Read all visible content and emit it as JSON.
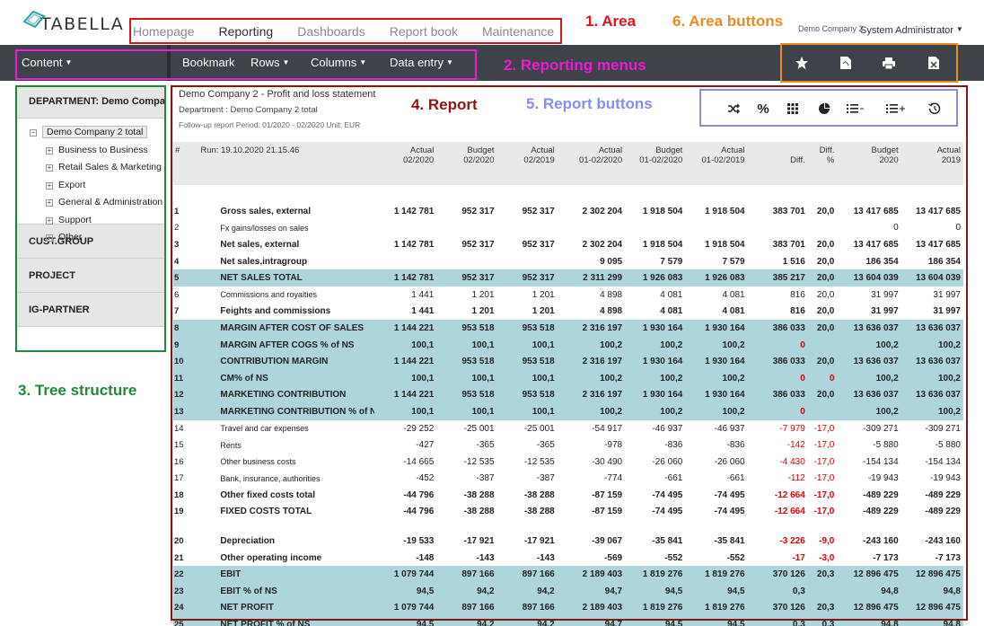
{
  "header": {
    "logo": "TABELLA",
    "area_nav": [
      "Homepage",
      "Reporting",
      "Dashboards",
      "Report book",
      "Maintenance"
    ],
    "active_area": "Reporting",
    "company": "Demo Company 2",
    "user": "System Administrator"
  },
  "menu": {
    "content": "Content",
    "bookmark": "Bookmark",
    "rows": "Rows",
    "columns": "Columns",
    "data_entry": "Data entry",
    "area_button_icons": [
      "star-icon",
      "pdf-icon",
      "print-icon",
      "excel-icon"
    ]
  },
  "sidebar": {
    "department": "DEPARTMENT: Demo Company",
    "tree_root": "Demo Company 2 total",
    "tree_children": [
      "Business to Business",
      "Retail Sales & Marketing",
      "Export",
      "General & Administration",
      "Support",
      "Other"
    ],
    "sections": [
      "CUST.GROUP",
      "PROJECT",
      "IG-PARTNER"
    ]
  },
  "report": {
    "title": "Demo Company 2 - Profit and loss statement",
    "department": "Department : Demo Company 2 total",
    "followup": "Follow-up report Period: 01/2020 - 02/2020 Unit: EUR",
    "button_icons": [
      "shuffle-icon",
      "percent-icon",
      "grid-icon",
      "pie-chart-icon",
      "list-collapse-icon",
      "list-expand-icon",
      "history-icon"
    ],
    "table": {
      "hash": "#",
      "run": "Run: 19.10.2020 21.15.46",
      "columns": [
        [
          "Actual",
          "02/2020"
        ],
        [
          "Budget",
          "02/2020"
        ],
        [
          "Actual",
          "02/2019"
        ],
        [
          "Actual",
          "01-02/2020"
        ],
        [
          "Budget",
          "01-02/2020"
        ],
        [
          "Actual",
          "01-02/2019"
        ],
        [
          "",
          "Diff."
        ],
        [
          "Diff.",
          "%"
        ],
        [
          "Budget",
          "2020"
        ],
        [
          "Actual",
          "2019"
        ]
      ],
      "rows": [
        {
          "n": "1",
          "label": "Gross sales, external",
          "style": "bold",
          "v": [
            "1 142 781",
            "952 317",
            "952 317",
            "2 302 204",
            "1 918 504",
            "1 918 504",
            "383 701",
            "20,0",
            "13 417 685",
            "13 417 685"
          ]
        },
        {
          "n": "2",
          "label": "Fx gains/losses on sales",
          "style": "small",
          "v": [
            "",
            "",
            "",
            "",
            "",
            "",
            "",
            "",
            "0",
            "0"
          ]
        },
        {
          "n": "3",
          "label": "Net sales, external",
          "style": "bold",
          "v": [
            "1 142 781",
            "952 317",
            "952 317",
            "2 302 204",
            "1 918 504",
            "1 918 504",
            "383 701",
            "20,0",
            "13 417 685",
            "13 417 685"
          ]
        },
        {
          "n": "4",
          "label": "Net sales,intragroup",
          "style": "bold",
          "v": [
            "",
            "",
            "",
            "9 095",
            "7 579",
            "7 579",
            "1 516",
            "20,0",
            "186 354",
            "186 354"
          ]
        },
        {
          "n": "5",
          "label": "NET SALES TOTAL",
          "style": "hl",
          "v": [
            "1 142 781",
            "952 317",
            "952 317",
            "2 311 299",
            "1 926 083",
            "1 926 083",
            "385 217",
            "20,0",
            "13 604 039",
            "13 604 039"
          ]
        },
        {
          "n": "6",
          "label": "Commissions and royalties",
          "style": "small",
          "v": [
            "1 441",
            "1 201",
            "1 201",
            "4 898",
            "4 081",
            "4 081",
            "816",
            "20,0",
            "31 997",
            "31 997"
          ]
        },
        {
          "n": "7",
          "label": "Feights and commissions",
          "style": "bold",
          "v": [
            "1 441",
            "1 201",
            "1 201",
            "4 898",
            "4 081",
            "4 081",
            "816",
            "20,0",
            "31 997",
            "31 997"
          ]
        },
        {
          "n": "8",
          "label": "MARGIN AFTER COST OF SALES",
          "style": "hl",
          "v": [
            "1 144 221",
            "953 518",
            "953 518",
            "2 316 197",
            "1 930 164",
            "1 930 164",
            "386 033",
            "20,0",
            "13 636 037",
            "13 636 037"
          ]
        },
        {
          "n": "9",
          "label": "MARGIN AFTER COGS % of NS",
          "style": "hl",
          "v": [
            "100,1",
            "100,1",
            "100,1",
            "100,2",
            "100,2",
            "100,2",
            "0",
            "",
            "100,2",
            "100,2"
          ],
          "neg": [
            6
          ]
        },
        {
          "n": "10",
          "label": "CONTRIBUTION MARGIN",
          "style": "hl",
          "v": [
            "1 144 221",
            "953 518",
            "953 518",
            "2 316 197",
            "1 930 164",
            "1 930 164",
            "386 033",
            "20,0",
            "13 636 037",
            "13 636 037"
          ]
        },
        {
          "n": "11",
          "label": "CM% of NS",
          "style": "hl",
          "v": [
            "100,1",
            "100,1",
            "100,1",
            "100,2",
            "100,2",
            "100,2",
            "0",
            "0",
            "100,2",
            "100,2"
          ],
          "neg": [
            6,
            7
          ]
        },
        {
          "n": "12",
          "label": "MARKETING CONTRIBUTION",
          "style": "hl",
          "v": [
            "1 144 221",
            "953 518",
            "953 518",
            "2 316 197",
            "1 930 164",
            "1 930 164",
            "386 033",
            "20,0",
            "13 636 037",
            "13 636 037"
          ]
        },
        {
          "n": "13",
          "label": "MARKETING CONTRIBUTION % of NS",
          "style": "hl",
          "v": [
            "100,1",
            "100,1",
            "100,1",
            "100,2",
            "100,2",
            "100,2",
            "0",
            "",
            "100,2",
            "100,2"
          ],
          "neg": [
            6
          ]
        },
        {
          "n": "14",
          "label": "Travel and car expenses",
          "style": "small",
          "v": [
            "-29 252",
            "-25 001",
            "-25 001",
            "-54 917",
            "-46 937",
            "-46 937",
            "-7 979",
            "-17,0",
            "-309 271",
            "-309 271"
          ],
          "neg": [
            6,
            7
          ]
        },
        {
          "n": "15",
          "label": "Rents",
          "style": "small",
          "v": [
            "-427",
            "-365",
            "-365",
            "-978",
            "-836",
            "-836",
            "-142",
            "-17,0",
            "-5 880",
            "-5 880"
          ],
          "neg": [
            6,
            7
          ]
        },
        {
          "n": "16",
          "label": "Other business costs",
          "style": "small",
          "v": [
            "-14 665",
            "-12 535",
            "-12 535",
            "-30 490",
            "-26 060",
            "-26 060",
            "-4 430",
            "-17,0",
            "-154 134",
            "-154 134"
          ],
          "neg": [
            6,
            7
          ]
        },
        {
          "n": "17",
          "label": "Bank, insurance, authorities",
          "style": "small",
          "v": [
            "-452",
            "-387",
            "-387",
            "-774",
            "-661",
            "-661",
            "-112",
            "-17,0",
            "-19 943",
            "-19 943"
          ],
          "neg": [
            6,
            7
          ]
        },
        {
          "n": "18",
          "label": "Other fixed costs total",
          "style": "bold",
          "v": [
            "-44 796",
            "-38 288",
            "-38 288",
            "-87 159",
            "-74 495",
            "-74 495",
            "-12 664",
            "-17,0",
            "-489 229",
            "-489 229"
          ],
          "neg": [
            6,
            7
          ]
        },
        {
          "n": "19",
          "label": "FIXED COSTS TOTAL",
          "style": "bold",
          "v": [
            "-44 796",
            "-38 288",
            "-38 288",
            "-87 159",
            "-74 495",
            "-74 495",
            "-12 664",
            "-17,0",
            "-489 229",
            "-489 229"
          ],
          "neg": [
            6,
            7
          ],
          "gap_after": true
        },
        {
          "n": "20",
          "label": "Depreciation",
          "style": "bold",
          "v": [
            "-19 533",
            "-17 921",
            "-17 921",
            "-39 067",
            "-35 841",
            "-35 841",
            "-3 226",
            "-9,0",
            "-243 160",
            "-243 160"
          ],
          "neg": [
            6,
            7
          ]
        },
        {
          "n": "21",
          "label": "Other operating income",
          "style": "bold",
          "v": [
            "-148",
            "-143",
            "-143",
            "-569",
            "-552",
            "-552",
            "-17",
            "-3,0",
            "-7 173",
            "-7 173"
          ],
          "neg": [
            6,
            7
          ]
        },
        {
          "n": "22",
          "label": "EBIT",
          "style": "hl",
          "v": [
            "1 079 744",
            "897 166",
            "897 166",
            "2 189 403",
            "1 819 276",
            "1 819 276",
            "370 126",
            "20,3",
            "12 896 475",
            "12 896 475"
          ]
        },
        {
          "n": "23",
          "label": "EBIT % of NS",
          "style": "hl",
          "v": [
            "94,5",
            "94,2",
            "94,2",
            "94,7",
            "94,5",
            "94,5",
            "0,3",
            "",
            "94,8",
            "94,8"
          ]
        },
        {
          "n": "24",
          "label": "NET PROFIT",
          "style": "hl",
          "v": [
            "1 079 744",
            "897 166",
            "897 166",
            "2 189 403",
            "1 819 276",
            "1 819 276",
            "370 126",
            "20,3",
            "12 896 475",
            "12 896 475"
          ]
        },
        {
          "n": "25",
          "label": "NET PROFIT % of NS",
          "style": "hl",
          "v": [
            "94,5",
            "94,2",
            "94,2",
            "94,7",
            "94,5",
            "94,5",
            "0,3",
            "0,3",
            "94,8",
            "94,8"
          ]
        }
      ]
    }
  },
  "annotations": {
    "area": "1. Area",
    "reporting_menus": "2. Reporting menus",
    "tree_structure": "3. Tree structure",
    "report": "4. Report",
    "report_buttons": "5. Report buttons",
    "area_buttons": "6. Area buttons",
    "colors": {
      "red": "#e0101f",
      "magenta": "#ec1bd6",
      "green": "#1f8a3a",
      "darkred": "#8b1414",
      "blue": "#8a8de8",
      "orange": "#ef8a1f"
    }
  }
}
